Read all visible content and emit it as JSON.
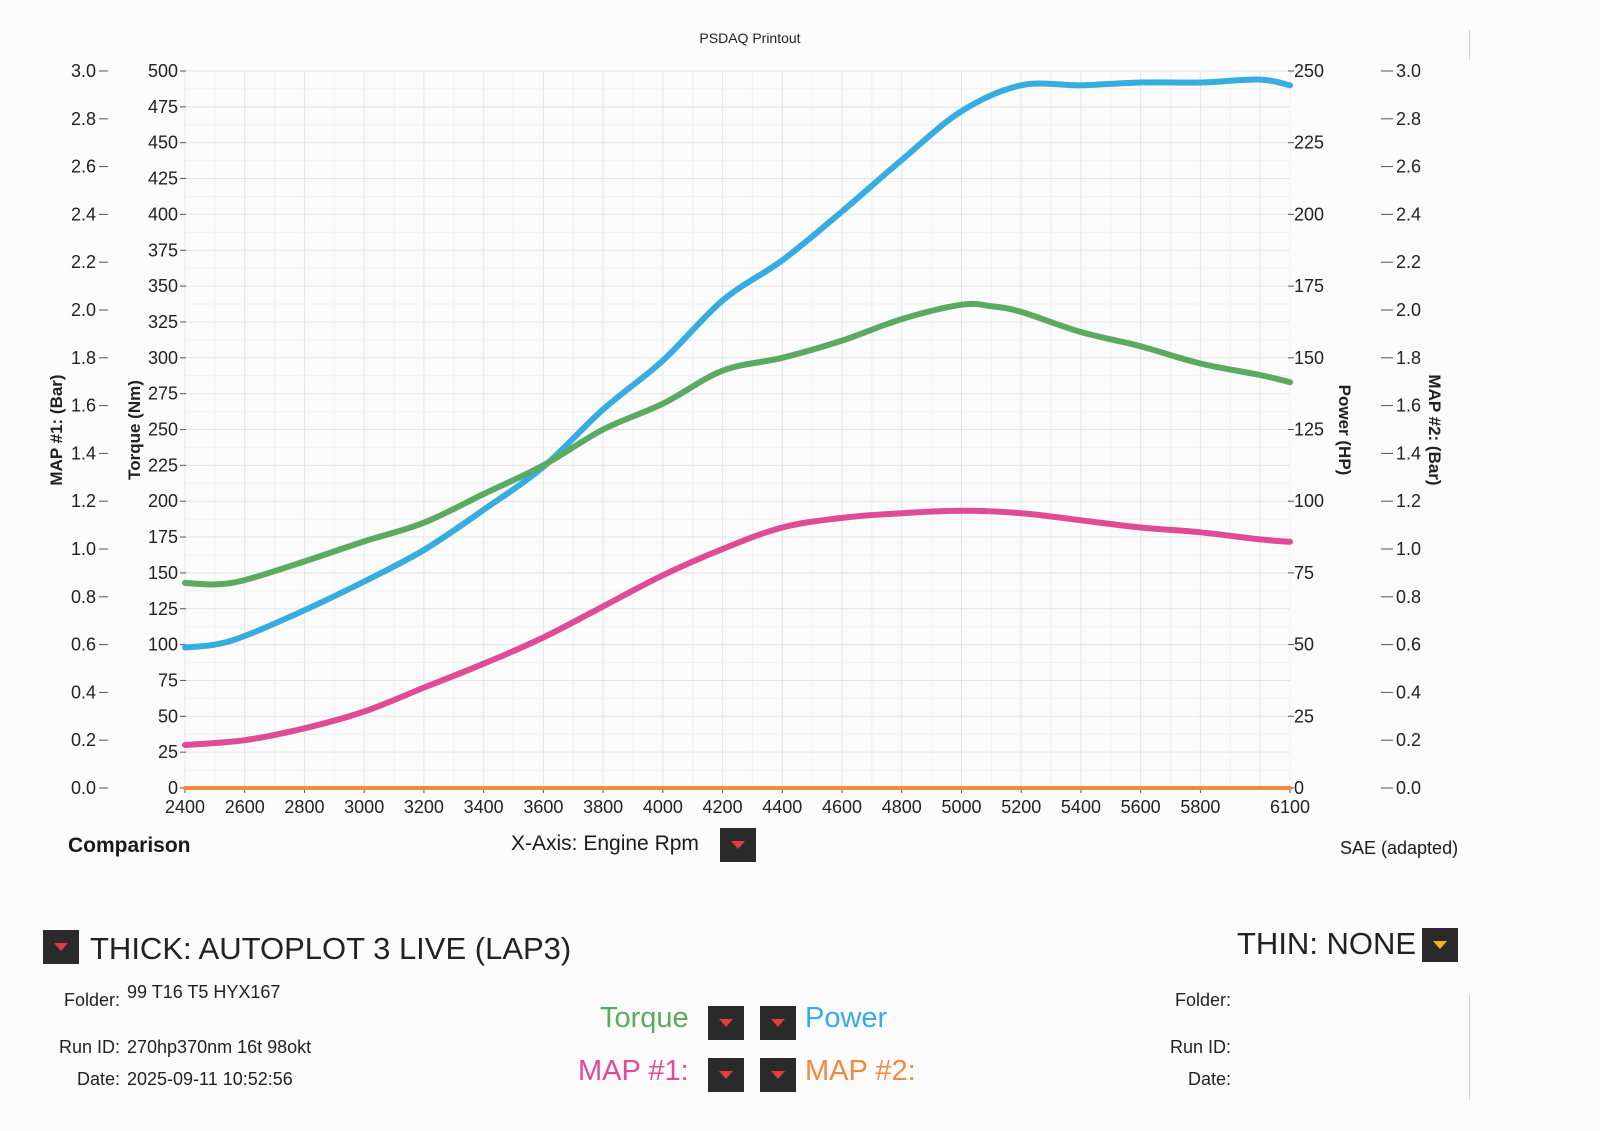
{
  "chart_data": {
    "type": "line",
    "title": "PSDAQ Printout",
    "xlabel": "",
    "x_range": [
      2400,
      6100
    ],
    "x_ticks": [
      "2400",
      "2600",
      "2800",
      "3000",
      "3200",
      "3400",
      "3600",
      "3800",
      "4000",
      "4200",
      "4400",
      "4600",
      "4800",
      "5000",
      "5200",
      "5400",
      "5600",
      "5800",
      "6100"
    ],
    "axes": {
      "map1": {
        "label": "MAP #1: (Bar)",
        "range": [
          0.0,
          3.0
        ],
        "ticks": [
          "3.0",
          "2.8",
          "2.6",
          "2.4",
          "2.2",
          "2.0",
          "1.8",
          "1.6",
          "1.4",
          "1.2",
          "1.0",
          "0.8",
          "0.6",
          "0.4",
          "0.2",
          "0.0"
        ]
      },
      "torque": {
        "label": "Torque (Nm)",
        "range": [
          0,
          500
        ],
        "ticks": [
          "500",
          "475",
          "450",
          "425",
          "400",
          "375",
          "350",
          "325",
          "300",
          "275",
          "250",
          "225",
          "200",
          "175",
          "150",
          "125",
          "100",
          "75",
          "50",
          "25",
          "0"
        ]
      },
      "power": {
        "label": "Power (HP)",
        "range": [
          0,
          250
        ],
        "ticks": [
          "250",
          "225",
          "200",
          "175",
          "150",
          "125",
          "100",
          "75",
          "50",
          "25",
          "0"
        ]
      },
      "map2": {
        "label": "MAP #2: (Bar)",
        "range": [
          0.0,
          3.0
        ],
        "ticks": [
          "3.0",
          "2.8",
          "2.6",
          "2.4",
          "2.2",
          "2.0",
          "1.8",
          "1.6",
          "1.4",
          "1.2",
          "1.0",
          "0.8",
          "0.6",
          "0.4",
          "0.2",
          "0.0"
        ]
      }
    },
    "grid": true,
    "series": [
      {
        "name": "Torque",
        "axis": "torque",
        "color": "#5aaa62",
        "x": [
          2400,
          2500,
          2600,
          2800,
          3000,
          3200,
          3400,
          3600,
          3800,
          4000,
          4200,
          4400,
          4600,
          4800,
          5000,
          5100,
          5200,
          5400,
          5600,
          5800,
          6000,
          6100
        ],
        "y": [
          143,
          142,
          145,
          158,
          172,
          185,
          205,
          225,
          250,
          268,
          291,
          300,
          312,
          327,
          337,
          336,
          332,
          318,
          308,
          296,
          288,
          283
        ]
      },
      {
        "name": "Power",
        "axis": "power",
        "color": "#36ace0",
        "x": [
          2400,
          2500,
          2600,
          2800,
          3000,
          3200,
          3400,
          3600,
          3800,
          4000,
          4200,
          4400,
          4600,
          4800,
          5000,
          5200,
          5400,
          5600,
          5800,
          6000,
          6100
        ],
        "y": [
          49,
          50,
          53,
          62,
          72,
          83,
          97,
          112,
          132,
          149,
          170,
          184,
          201,
          219,
          236,
          245,
          245,
          246,
          246,
          247,
          245
        ]
      },
      {
        "name": "MAP #1:",
        "axis": "map1",
        "color": "#e04b96",
        "x": [
          2400,
          2600,
          2800,
          3000,
          3200,
          3400,
          3600,
          3800,
          4000,
          4200,
          4400,
          4600,
          4800,
          5000,
          5200,
          5400,
          5600,
          5800,
          6000,
          6100
        ],
        "y": [
          0.18,
          0.2,
          0.25,
          0.32,
          0.42,
          0.52,
          0.63,
          0.76,
          0.89,
          1.0,
          1.09,
          1.13,
          1.15,
          1.16,
          1.15,
          1.12,
          1.09,
          1.07,
          1.04,
          1.03
        ]
      },
      {
        "name": "MAP #2:",
        "axis": "map2",
        "color": "#f28a3b",
        "x": [
          2400,
          6100
        ],
        "y": [
          0.0,
          0.0
        ]
      }
    ]
  },
  "footer": {
    "comparison": "Comparison",
    "x_axis_selector": "X-Axis: Engine Rpm",
    "correction": "SAE (adapted)"
  },
  "legend": {
    "torque": "Torque",
    "power": "Power",
    "map1": "MAP #1:",
    "map2": "MAP #2:"
  },
  "thick": {
    "title": "THICK: AUTOPLOT 3 LIVE (LAP3)",
    "folder_label": "Folder:",
    "folder_value": "99 T16 T5 HYX167",
    "runid_label": "Run ID:",
    "runid_value": "270hp370nm 16t 98okt",
    "date_label": "Date:",
    "date_value": "2025-09-11 10:52:56"
  },
  "thin": {
    "title": "THIN: NONE",
    "folder_label": "Folder:",
    "runid_label": "Run ID:",
    "date_label": "Date:"
  }
}
